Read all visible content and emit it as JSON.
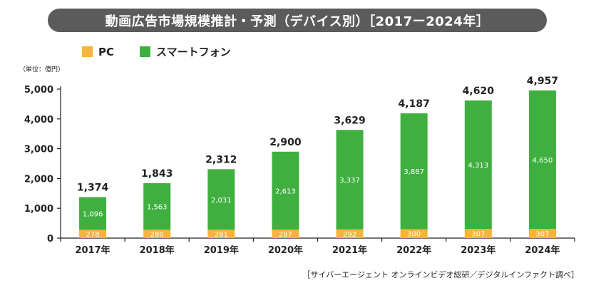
{
  "title": "動画広告市場規模推計・予測（デバイス別）［2017ー2024年］",
  "unit_label": "（単位：億円）",
  "source": "［サイバーエージェント オンラインビデオ総研／デジタルインファクト調べ］",
  "colors": {
    "pc": "#f8b339",
    "smartphone": "#3fb040",
    "title_bg": "#5b5b5b"
  },
  "chart_data": {
    "type": "bar",
    "stacked": true,
    "title": "動画広告市場規模推計・予測（デバイス別）［2017ー2024年］",
    "categories": [
      "2017年",
      "2018年",
      "2019年",
      "2020年",
      "2021年",
      "2022年",
      "2023年",
      "2024年"
    ],
    "series": [
      {
        "name": "PC",
        "values": [
          278,
          280,
          281,
          287,
          292,
          300,
          307,
          307
        ]
      },
      {
        "name": "スマートフォン",
        "values": [
          1096,
          1563,
          2031,
          2613,
          3337,
          3887,
          4313,
          4650
        ]
      }
    ],
    "totals": [
      1374,
      1843,
      2312,
      2900,
      3629,
      4187,
      4620,
      4957
    ],
    "total_labels": [
      "1,374",
      "1,843",
      "2,312",
      "2,900",
      "3,629",
      "4,187",
      "4,620",
      "4,957"
    ],
    "pc_labels": [
      "278",
      "280",
      "281",
      "287",
      "292",
      "300",
      "307",
      "307"
    ],
    "smartphone_labels": [
      "1,096",
      "1,563",
      "2,031",
      "2,613",
      "3,337",
      "3,887",
      "4,313",
      "4,650"
    ],
    "ylim": [
      0,
      5000
    ],
    "yticks": [
      0,
      1000,
      2000,
      3000,
      4000,
      5000
    ],
    "ytick_labels": [
      "0",
      "1,000",
      "2,000",
      "3,000",
      "4,000",
      "5,000"
    ],
    "grid": false,
    "legend": "top-left"
  }
}
